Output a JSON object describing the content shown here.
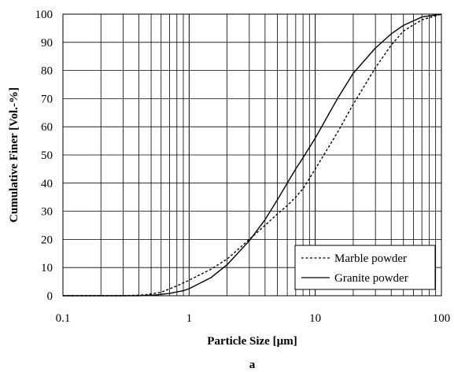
{
  "chart_data": {
    "type": "line",
    "title": "",
    "caption": "a",
    "xlabel": "Particle Size [µm]",
    "ylabel": "Cumulative Finer [Vol.-%]",
    "xscale": "log",
    "xlim": [
      0.1,
      100
    ],
    "ylim": [
      0,
      100
    ],
    "x_ticks": [
      0.1,
      1,
      10,
      100
    ],
    "x_tick_labels": [
      "0.1",
      "1",
      "10",
      "100"
    ],
    "y_ticks": [
      0,
      10,
      20,
      30,
      40,
      50,
      60,
      70,
      80,
      90,
      100
    ],
    "y_tick_labels": [
      "0",
      "10",
      "20",
      "30",
      "40",
      "50",
      "60",
      "70",
      "80",
      "90",
      "100"
    ],
    "grid": true,
    "legend_position": "bottom-right",
    "series": [
      {
        "name": "Marble powder",
        "style": "dotted",
        "color": "#000000",
        "points": [
          [
            0.1,
            0
          ],
          [
            0.3,
            0
          ],
          [
            0.45,
            0.3
          ],
          [
            0.6,
            1.2
          ],
          [
            0.8,
            3.5
          ],
          [
            1,
            5.5
          ],
          [
            1.5,
            9.5
          ],
          [
            2,
            13
          ],
          [
            3,
            20
          ],
          [
            4,
            25
          ],
          [
            5,
            29
          ],
          [
            6,
            32
          ],
          [
            7,
            35
          ],
          [
            8,
            38
          ],
          [
            10,
            45
          ],
          [
            15,
            58
          ],
          [
            20,
            68
          ],
          [
            30,
            81
          ],
          [
            40,
            89
          ],
          [
            50,
            94
          ],
          [
            70,
            98
          ],
          [
            100,
            100
          ]
        ]
      },
      {
        "name": "Granite powder",
        "style": "solid",
        "color": "#000000",
        "points": [
          [
            0.1,
            0
          ],
          [
            0.4,
            0
          ],
          [
            0.55,
            0.3
          ],
          [
            0.7,
            0.8
          ],
          [
            0.9,
            1.8
          ],
          [
            1,
            2.5
          ],
          [
            1.5,
            6.5
          ],
          [
            2,
            11
          ],
          [
            3,
            19.5
          ],
          [
            4,
            27
          ],
          [
            5,
            34
          ],
          [
            6,
            40
          ],
          [
            7,
            45
          ],
          [
            8,
            49
          ],
          [
            10,
            56
          ],
          [
            15,
            70
          ],
          [
            20,
            79
          ],
          [
            30,
            88
          ],
          [
            40,
            93
          ],
          [
            50,
            96
          ],
          [
            70,
            99
          ],
          [
            100,
            100
          ]
        ]
      }
    ]
  },
  "colors": {
    "axis": "#000000",
    "grid": "#000000",
    "background": "#ffffff"
  }
}
